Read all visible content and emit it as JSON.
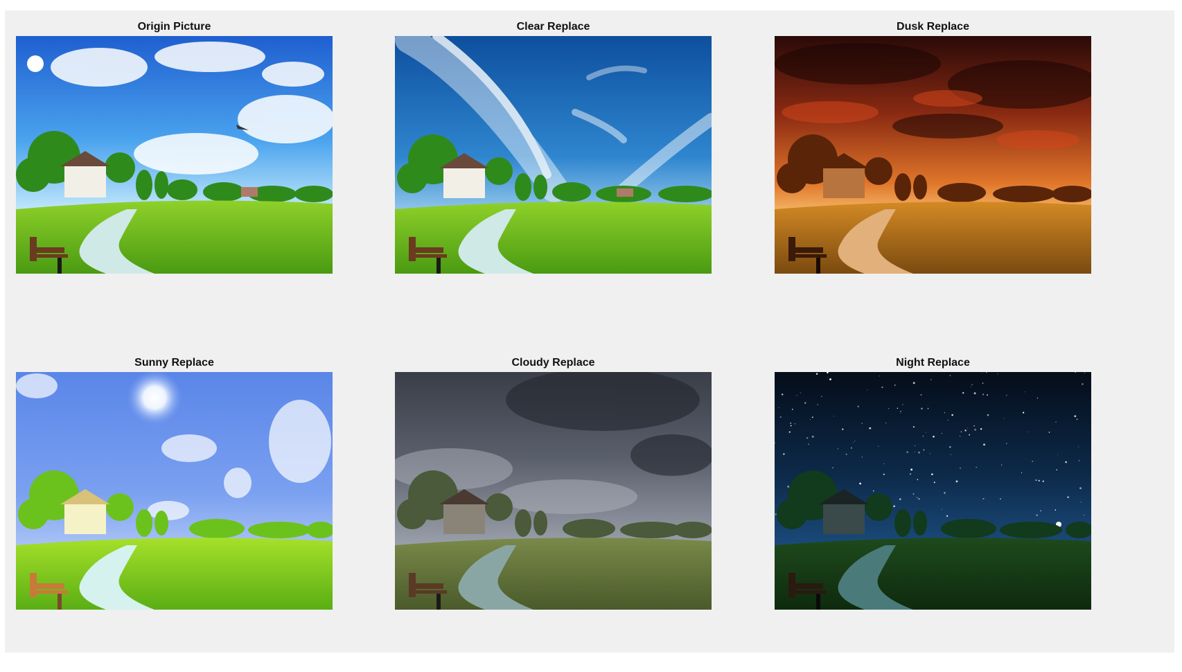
{
  "figure": {
    "background": "#f0f0f0",
    "panels": [
      {
        "title": "Origin Picture",
        "variant": "origin"
      },
      {
        "title": "Clear Replace",
        "variant": "clear"
      },
      {
        "title": "Dusk Replace",
        "variant": "dusk"
      },
      {
        "title": "Sunny Replace",
        "variant": "sunny"
      },
      {
        "title": "Cloudy Replace",
        "variant": "cloudy"
      },
      {
        "title": "Night Replace",
        "variant": "night"
      }
    ]
  }
}
